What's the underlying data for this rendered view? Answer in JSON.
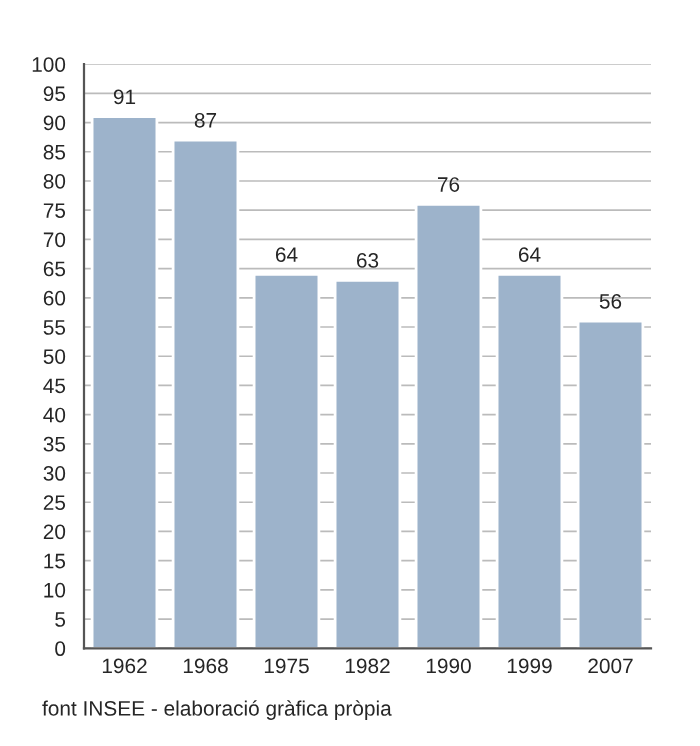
{
  "chart_data": {
    "type": "bar",
    "categories": [
      "1962",
      "1968",
      "1975",
      "1982",
      "1990",
      "1999",
      "2007"
    ],
    "values": [
      91,
      87,
      64,
      63,
      76,
      64,
      56
    ],
    "color": "#9db3cb",
    "ylim": [
      0,
      100
    ],
    "yticks": [
      0,
      5,
      10,
      15,
      20,
      25,
      30,
      35,
      40,
      45,
      50,
      55,
      60,
      65,
      70,
      75,
      80,
      85,
      90,
      95,
      100
    ],
    "grid": "y",
    "data_labels": true,
    "annotations": [
      "font INSEE - elaboració gràfica pròpia"
    ]
  }
}
